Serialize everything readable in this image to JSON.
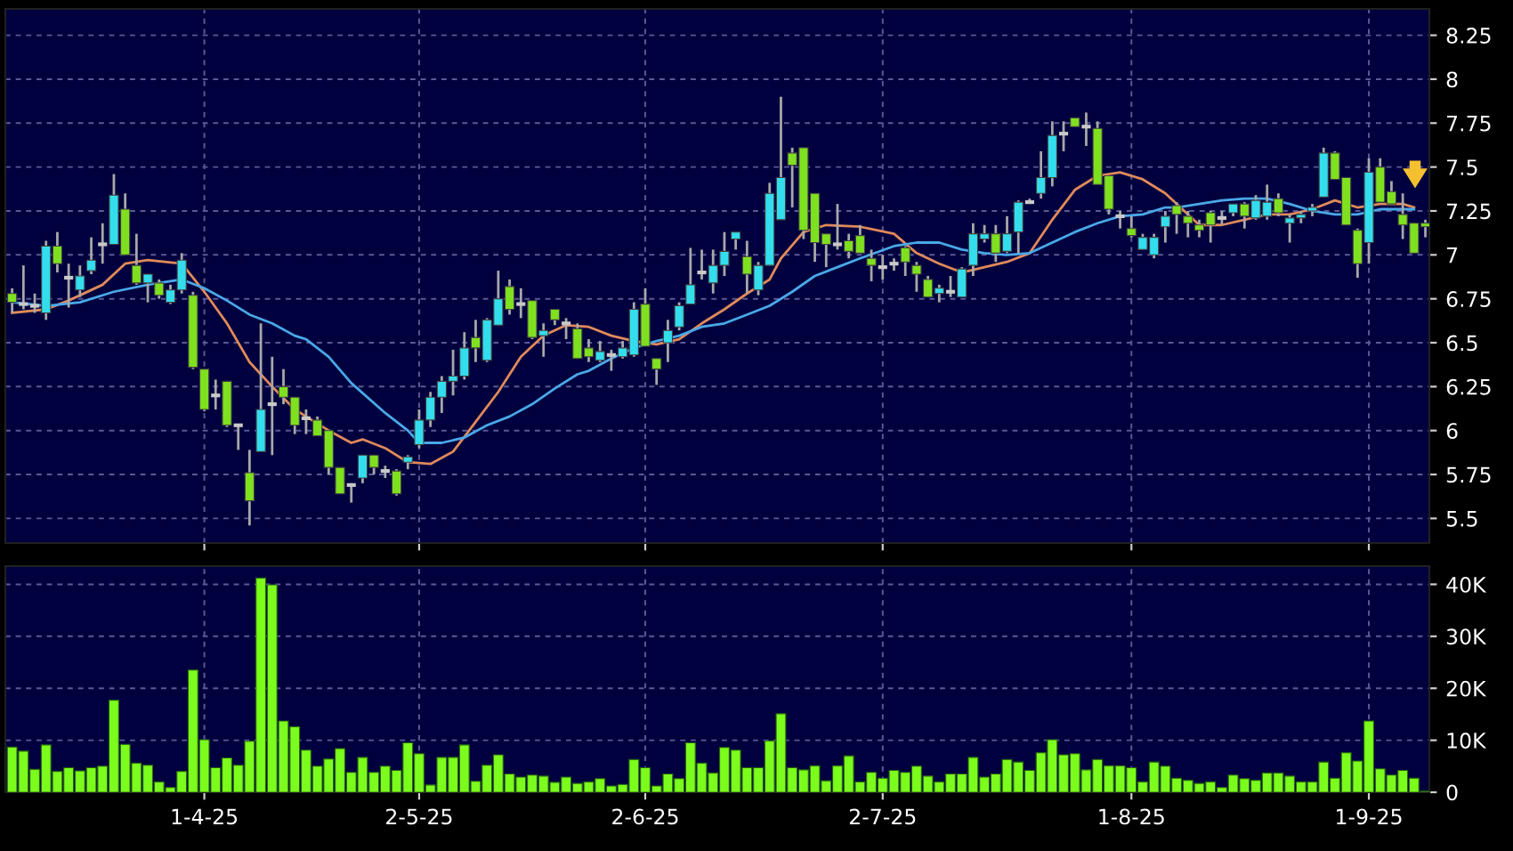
{
  "chart_data": [
    {
      "type": "candlestick",
      "categories": [
        null,
        null,
        null,
        null,
        null,
        null,
        null,
        null,
        null,
        null,
        null,
        null,
        null,
        null,
        null,
        null,
        null,
        null,
        null,
        null,
        null,
        null,
        null,
        null,
        null,
        null,
        null,
        null,
        null,
        null,
        null,
        null,
        null,
        null,
        null,
        null,
        null,
        null,
        null,
        null,
        null,
        null,
        null,
        null,
        null,
        null,
        null,
        null,
        null,
        null,
        null,
        null,
        null,
        null,
        null,
        null,
        null,
        null,
        null,
        null,
        null,
        null,
        null,
        null,
        null,
        null,
        null,
        null,
        null,
        null,
        null,
        null,
        null,
        null,
        null,
        null,
        null,
        null,
        null,
        null,
        null,
        null,
        null,
        null,
        null,
        null,
        null,
        null,
        null,
        null,
        null,
        null,
        null,
        null,
        null,
        null,
        null,
        null,
        null,
        null,
        null,
        null,
        null,
        null,
        null,
        null,
        null,
        null,
        null,
        null,
        null,
        null,
        null,
        null,
        null,
        null,
        null,
        null,
        null,
        null,
        null,
        null,
        null,
        null,
        null,
        null
      ],
      "ohlc": [
        [
          6.78,
          6.81,
          6.67,
          6.73
        ],
        [
          6.72,
          6.94,
          6.69,
          6.72
        ],
        [
          6.71,
          6.78,
          6.67,
          6.71
        ],
        [
          6.67,
          7.08,
          6.63,
          7.05
        ],
        [
          7.05,
          7.13,
          6.9,
          6.95
        ],
        [
          6.87,
          6.95,
          6.7,
          6.87
        ],
        [
          6.8,
          6.94,
          6.76,
          6.88
        ],
        [
          6.91,
          7.1,
          6.89,
          6.97
        ],
        [
          7.06,
          7.18,
          6.95,
          7.06
        ],
        [
          7.06,
          7.46,
          7.06,
          7.34
        ],
        [
          7.26,
          7.35,
          7.0,
          7.0
        ],
        [
          6.94,
          7.12,
          6.83,
          6.84
        ],
        [
          6.84,
          6.89,
          6.73,
          6.89
        ],
        [
          6.84,
          6.86,
          6.75,
          6.77
        ],
        [
          6.73,
          6.83,
          6.72,
          6.8
        ],
        [
          6.8,
          7.01,
          6.78,
          6.97
        ],
        [
          6.77,
          6.79,
          6.35,
          6.36
        ],
        [
          6.35,
          6.35,
          6.11,
          6.12
        ],
        [
          6.2,
          6.29,
          6.12,
          6.2
        ],
        [
          6.28,
          6.28,
          6.02,
          6.03
        ],
        [
          6.03,
          6.03,
          5.89,
          6.03
        ],
        [
          5.76,
          5.89,
          5.46,
          5.6
        ],
        [
          5.88,
          6.61,
          5.88,
          6.12
        ],
        [
          6.15,
          6.42,
          5.86,
          6.15
        ],
        [
          6.25,
          6.35,
          6.15,
          6.19
        ],
        [
          6.19,
          6.19,
          5.98,
          6.03
        ],
        [
          6.07,
          6.12,
          5.98,
          6.07
        ],
        [
          6.06,
          6.08,
          5.97,
          5.97
        ],
        [
          6.0,
          6.0,
          5.75,
          5.79
        ],
        [
          5.79,
          5.79,
          5.64,
          5.64
        ],
        [
          5.69,
          5.7,
          5.59,
          5.69
        ],
        [
          5.73,
          5.86,
          5.7,
          5.86
        ],
        [
          5.86,
          5.86,
          5.75,
          5.79
        ],
        [
          5.77,
          5.8,
          5.73,
          5.77
        ],
        [
          5.77,
          5.78,
          5.63,
          5.64
        ],
        [
          5.82,
          5.86,
          5.78,
          5.85
        ],
        [
          5.92,
          6.12,
          5.9,
          6.06
        ],
        [
          6.06,
          6.22,
          6.02,
          6.19
        ],
        [
          6.19,
          6.31,
          6.1,
          6.28
        ],
        [
          6.28,
          6.46,
          6.2,
          6.31
        ],
        [
          6.31,
          6.56,
          6.29,
          6.47
        ],
        [
          6.53,
          6.63,
          6.39,
          6.47
        ],
        [
          6.4,
          6.64,
          6.39,
          6.63
        ],
        [
          6.6,
          6.91,
          6.6,
          6.75
        ],
        [
          6.82,
          6.86,
          6.66,
          6.69
        ],
        [
          6.72,
          6.81,
          6.64,
          6.72
        ],
        [
          6.74,
          6.74,
          6.52,
          6.53
        ],
        [
          6.54,
          6.61,
          6.42,
          6.57
        ],
        [
          6.69,
          6.69,
          6.6,
          6.63
        ],
        [
          6.61,
          6.64,
          6.52,
          6.61
        ],
        [
          6.58,
          6.61,
          6.41,
          6.41
        ],
        [
          6.47,
          6.52,
          6.39,
          6.42
        ],
        [
          6.4,
          6.51,
          6.39,
          6.45
        ],
        [
          6.43,
          6.46,
          6.34,
          6.43
        ],
        [
          6.42,
          6.51,
          6.41,
          6.47
        ],
        [
          6.43,
          6.73,
          6.42,
          6.69
        ],
        [
          6.72,
          6.81,
          6.48,
          6.48
        ],
        [
          6.41,
          6.41,
          6.26,
          6.35
        ],
        [
          6.5,
          6.63,
          6.39,
          6.57
        ],
        [
          6.59,
          6.73,
          6.57,
          6.71
        ],
        [
          6.72,
          7.04,
          6.72,
          6.83
        ],
        [
          6.9,
          7.03,
          6.86,
          6.9
        ],
        [
          6.84,
          7.03,
          6.78,
          6.94
        ],
        [
          6.94,
          7.13,
          6.88,
          7.02
        ],
        [
          7.09,
          7.13,
          7.03,
          7.13
        ],
        [
          6.99,
          7.08,
          6.78,
          6.89
        ],
        [
          6.8,
          6.96,
          6.77,
          6.94
        ],
        [
          6.94,
          7.41,
          6.94,
          7.35
        ],
        [
          7.2,
          7.9,
          7.2,
          7.44
        ],
        [
          7.58,
          7.61,
          7.27,
          7.51
        ],
        [
          7.61,
          7.61,
          7.09,
          7.14
        ],
        [
          7.35,
          7.35,
          6.96,
          7.07
        ],
        [
          7.12,
          7.12,
          6.93,
          7.06
        ],
        [
          7.06,
          7.29,
          7.03,
          7.06
        ],
        [
          7.08,
          7.12,
          6.98,
          7.02
        ],
        [
          7.11,
          7.17,
          7.01,
          7.01
        ],
        [
          6.98,
          7.03,
          6.85,
          6.94
        ],
        [
          6.93,
          7.0,
          6.86,
          6.93
        ],
        [
          6.95,
          6.98,
          6.91,
          6.95
        ],
        [
          7.04,
          7.05,
          6.88,
          6.96
        ],
        [
          6.94,
          6.96,
          6.79,
          6.89
        ],
        [
          6.86,
          6.88,
          6.76,
          6.76
        ],
        [
          6.78,
          6.83,
          6.73,
          6.81
        ],
        [
          6.79,
          6.88,
          6.76,
          6.79
        ],
        [
          6.76,
          6.93,
          6.76,
          6.92
        ],
        [
          6.94,
          7.18,
          6.88,
          7.12
        ],
        [
          7.09,
          7.17,
          7.07,
          7.12
        ],
        [
          7.12,
          7.17,
          6.96,
          7.01
        ],
        [
          7.02,
          7.22,
          7.01,
          7.12
        ],
        [
          7.13,
          7.31,
          7.01,
          7.3
        ],
        [
          7.3,
          7.32,
          7.29,
          7.3
        ],
        [
          7.35,
          7.59,
          7.32,
          7.44
        ],
        [
          7.44,
          7.76,
          7.39,
          7.68
        ],
        [
          7.69,
          7.76,
          7.59,
          7.69
        ],
        [
          7.78,
          7.78,
          7.73,
          7.73
        ],
        [
          7.73,
          7.81,
          7.62,
          7.73
        ],
        [
          7.72,
          7.76,
          7.4,
          7.4
        ],
        [
          7.45,
          7.45,
          7.23,
          7.26
        ],
        [
          7.22,
          7.25,
          7.15,
          7.22
        ],
        [
          7.15,
          7.22,
          7.1,
          7.11
        ],
        [
          7.03,
          7.12,
          7.03,
          7.1
        ],
        [
          7.0,
          7.12,
          6.98,
          7.1
        ],
        [
          7.16,
          7.25,
          7.07,
          7.22
        ],
        [
          7.28,
          7.3,
          7.12,
          7.23
        ],
        [
          7.22,
          7.25,
          7.1,
          7.18
        ],
        [
          7.17,
          7.2,
          7.1,
          7.14
        ],
        [
          7.24,
          7.25,
          7.07,
          7.17
        ],
        [
          7.21,
          7.25,
          7.17,
          7.21
        ],
        [
          7.24,
          7.29,
          7.22,
          7.29
        ],
        [
          7.29,
          7.3,
          7.15,
          7.22
        ],
        [
          7.21,
          7.34,
          7.2,
          7.31
        ],
        [
          7.22,
          7.4,
          7.2,
          7.3
        ],
        [
          7.32,
          7.35,
          7.22,
          7.24
        ],
        [
          7.18,
          7.23,
          7.07,
          7.21
        ],
        [
          7.21,
          7.25,
          7.18,
          7.23
        ],
        [
          7.25,
          7.29,
          7.22,
          7.27
        ],
        [
          7.33,
          7.61,
          7.33,
          7.58
        ],
        [
          7.58,
          7.59,
          7.43,
          7.43
        ],
        [
          7.44,
          7.44,
          7.17,
          7.17
        ],
        [
          7.14,
          7.15,
          6.87,
          6.95
        ],
        [
          7.07,
          7.55,
          6.95,
          7.47
        ],
        [
          7.5,
          7.55,
          7.3,
          7.3
        ],
        [
          7.36,
          7.42,
          7.29,
          7.29
        ],
        [
          7.23,
          7.35,
          7.09,
          7.17
        ],
        [
          7.18,
          7.18,
          7.01,
          7.01
        ],
        [
          7.18,
          7.2,
          7.1,
          7.16
        ]
      ],
      "colors": [
        "#7fe020",
        "#c8c8c8",
        "#c8c8c8",
        "#33ddee",
        "#7fe020",
        "#c8c8c8",
        "#33ddee",
        "#33ddee",
        "#c8c8c8",
        "#33ddee",
        "#7fe020",
        "#7fe020",
        "#33ddee",
        "#7fe020",
        "#33ddee",
        "#33ddee",
        "#7fe020",
        "#7fe020",
        "#c8c8c8",
        "#7fe020",
        "#c8c8c8",
        "#7fe020",
        "#33ddee",
        "#c8c8c8",
        "#7fe020",
        "#7fe020",
        "#c8c8c8",
        "#7fe020",
        "#7fe020",
        "#7fe020",
        "#c8c8c8",
        "#33ddee",
        "#7fe020",
        "#c8c8c8",
        "#7fe020",
        "#33ddee",
        "#33ddee",
        "#33ddee",
        "#33ddee",
        "#33ddee",
        "#33ddee",
        "#7fe020",
        "#33ddee",
        "#33ddee",
        "#7fe020",
        "#c8c8c8",
        "#7fe020",
        "#33ddee",
        "#7fe020",
        "#c8c8c8",
        "#7fe020",
        "#7fe020",
        "#33ddee",
        "#c8c8c8",
        "#33ddee",
        "#33ddee",
        "#7fe020",
        "#7fe020",
        "#33ddee",
        "#33ddee",
        "#33ddee",
        "#c8c8c8",
        "#33ddee",
        "#33ddee",
        "#33ddee",
        "#7fe020",
        "#33ddee",
        "#33ddee",
        "#33ddee",
        "#7fe020",
        "#7fe020",
        "#7fe020",
        "#7fe020",
        "#c8c8c8",
        "#7fe020",
        "#7fe020",
        "#7fe020",
        "#c8c8c8",
        "#c8c8c8",
        "#7fe020",
        "#7fe020",
        "#7fe020",
        "#33ddee",
        "#c8c8c8",
        "#33ddee",
        "#33ddee",
        "#33ddee",
        "#7fe020",
        "#33ddee",
        "#33ddee",
        "#c8c8c8",
        "#33ddee",
        "#33ddee",
        "#c8c8c8",
        "#7fe020",
        "#c8c8c8",
        "#7fe020",
        "#7fe020",
        "#c8c8c8",
        "#7fe020",
        "#33ddee",
        "#33ddee",
        "#33ddee",
        "#7fe020",
        "#7fe020",
        "#7fe020",
        "#7fe020",
        "#c8c8c8",
        "#33ddee",
        "#7fe020",
        "#33ddee",
        "#33ddee",
        "#7fe020",
        "#33ddee",
        "#33ddee",
        "#33ddee",
        "#33ddee",
        "#7fe020",
        "#7fe020",
        "#7fe020",
        "#33ddee",
        "#7fe020",
        "#7fe020",
        "#7fe020",
        "#7fe020",
        "#7fe020"
      ],
      "series": [
        {
          "type": "line",
          "color": "#e08a5a",
          "values": [
            6.67,
            null,
            null,
            6.69,
            null,
            6.74,
            null,
            null,
            6.83,
            null,
            6.95,
            null,
            6.97,
            null,
            null,
            6.95,
            null,
            6.79,
            null,
            6.61,
            null,
            6.39,
            null,
            6.25,
            null,
            6.12,
            6.08,
            null,
            6.0,
            null,
            5.93,
            5.95,
            null,
            5.9,
            null,
            5.82,
            null,
            5.81,
            null,
            5.88,
            null,
            6.05,
            null,
            6.22,
            null,
            6.42,
            null,
            6.54,
            null,
            6.6,
            null,
            6.59,
            null,
            6.54,
            null,
            6.51,
            null,
            6.49,
            null,
            6.52,
            null,
            6.61,
            null,
            6.69,
            null,
            6.78,
            null,
            6.86,
            6.98,
            null,
            7.13,
            null,
            7.17,
            null,
            null,
            7.16,
            null,
            null,
            7.12,
            null,
            7.01,
            null,
            6.95,
            null,
            6.9,
            null,
            6.93,
            null,
            6.96,
            null,
            7.01,
            null,
            7.2,
            null,
            7.37,
            null,
            7.45,
            null,
            7.47,
            null,
            7.43,
            null,
            7.35,
            7.29,
            null,
            7.17,
            null,
            7.17,
            null,
            7.2,
            null,
            7.23,
            null,
            7.23,
            null,
            7.26,
            null,
            7.31,
            null,
            7.27,
            null,
            7.29,
            null,
            7.29,
            7.27,
            null
          ]
        },
        {
          "type": "line",
          "color": "#4aa8e8",
          "values": [
            6.73,
            null,
            null,
            6.71,
            null,
            null,
            6.73,
            null,
            null,
            6.79,
            null,
            null,
            6.83,
            null,
            null,
            6.86,
            null,
            6.81,
            null,
            6.74,
            null,
            6.66,
            null,
            6.61,
            null,
            6.54,
            6.52,
            null,
            6.42,
            null,
            6.27,
            null,
            null,
            6.1,
            null,
            6.0,
            5.93,
            null,
            5.93,
            null,
            5.96,
            null,
            6.03,
            null,
            6.08,
            null,
            6.15,
            null,
            6.24,
            null,
            6.32,
            6.34,
            null,
            6.41,
            null,
            6.47,
            null,
            6.51,
            null,
            6.54,
            null,
            6.59,
            null,
            6.61,
            null,
            6.66,
            null,
            6.71,
            null,
            6.79,
            null,
            6.88,
            null,
            6.93,
            null,
            6.98,
            null,
            null,
            7.05,
            null,
            7.07,
            null,
            7.07,
            null,
            7.03,
            null,
            7.01,
            null,
            7.0,
            null,
            7.01,
            null,
            7.07,
            null,
            7.13,
            null,
            7.18,
            null,
            7.22,
            null,
            7.23,
            null,
            7.27,
            7.27,
            null,
            7.29,
            null,
            7.31,
            null,
            7.32,
            null,
            7.32,
            null,
            7.29,
            null,
            7.25,
            null,
            7.23,
            null,
            7.23,
            null,
            7.26,
            null,
            7.26,
            7.26,
            null
          ]
        }
      ],
      "ylim": [
        5.36,
        8.4
      ],
      "yticks": [
        5.5,
        5.75,
        6,
        6.25,
        6.5,
        6.75,
        7,
        7.25,
        7.5,
        7.75,
        8,
        8.25
      ],
      "grid": true,
      "tick_labels": "y"
    },
    {
      "type": "bar",
      "categories": [
        null,
        null,
        null,
        null,
        null,
        null,
        null,
        null,
        null,
        null,
        null,
        null,
        null,
        null,
        null,
        null,
        null,
        "1-4-25",
        null,
        null,
        null,
        null,
        null,
        null,
        null,
        null,
        null,
        null,
        null,
        null,
        null,
        null,
        null,
        null,
        null,
        null,
        "2-5-25",
        null,
        null,
        null,
        null,
        null,
        null,
        null,
        null,
        null,
        null,
        null,
        null,
        null,
        null,
        null,
        null,
        null,
        null,
        null,
        "2-6-25",
        null,
        null,
        null,
        null,
        null,
        null,
        null,
        null,
        null,
        null,
        null,
        null,
        null,
        null,
        null,
        null,
        null,
        null,
        null,
        null,
        "2-7-25",
        null,
        null,
        null,
        null,
        null,
        null,
        null,
        null,
        null,
        null,
        null,
        null,
        null,
        null,
        null,
        null,
        null,
        null,
        null,
        null,
        null,
        "1-8-25",
        null,
        null,
        null,
        null,
        null,
        null,
        null,
        null,
        null,
        null,
        null,
        null,
        null,
        null,
        null,
        null,
        null,
        null,
        null,
        null,
        "1-9-25",
        null,
        null,
        null,
        null,
        null
      ],
      "values": [
        8.7,
        7.9,
        4.4,
        9.1,
        4.0,
        4.7,
        4.1,
        4.7,
        5.0,
        17.7,
        9.2,
        5.6,
        5.2,
        2.0,
        0.9,
        4.0,
        23.5,
        10.1,
        4.7,
        6.6,
        5.2,
        9.8,
        41.2,
        39.9,
        13.7,
        12.6,
        8.1,
        5.0,
        6.4,
        8.4,
        3.8,
        6.7,
        3.8,
        5.0,
        4.2,
        9.5,
        7.4,
        1.4,
        6.7,
        6.7,
        9.1,
        2.1,
        5.2,
        7.2,
        3.5,
        2.9,
        3.3,
        3.1,
        1.9,
        2.9,
        1.7,
        2.0,
        2.6,
        1.2,
        1.5,
        6.3,
        4.7,
        1.2,
        3.5,
        2.6,
        9.5,
        5.6,
        3.7,
        8.6,
        8.1,
        4.7,
        4.7,
        9.9,
        15.1,
        4.7,
        4.3,
        5.1,
        2.2,
        5.1,
        7.0,
        2.0,
        3.8,
        2.7,
        4.2,
        3.8,
        5.0,
        3.1,
        2.0,
        3.5,
        3.5,
        6.7,
        2.9,
        3.5,
        6.3,
        5.8,
        4.2,
        7.6,
        10.1,
        7.2,
        7.4,
        4.3,
        6.3,
        5.1,
        5.1,
        4.7,
        2.0,
        5.8,
        5.0,
        2.7,
        2.3,
        1.7,
        2.0,
        0.9,
        3.3,
        2.6,
        2.3,
        3.7,
        3.7,
        3.1,
        2.0,
        2.0,
        5.8,
        2.7,
        7.6,
        6.0,
        13.7,
        4.5,
        3.3,
        4.2,
        2.7,
        0.2
      ],
      "color": "#7cfc1c",
      "ylim": [
        0,
        43.5
      ],
      "yticks": [
        {
          "value": 0,
          "label": "0"
        },
        {
          "value": 10,
          "label": "10K"
        },
        {
          "value": 20,
          "label": "20K"
        },
        {
          "value": 30,
          "label": "30K"
        },
        {
          "value": 40,
          "label": "40K"
        }
      ],
      "grid": true
    }
  ]
}
